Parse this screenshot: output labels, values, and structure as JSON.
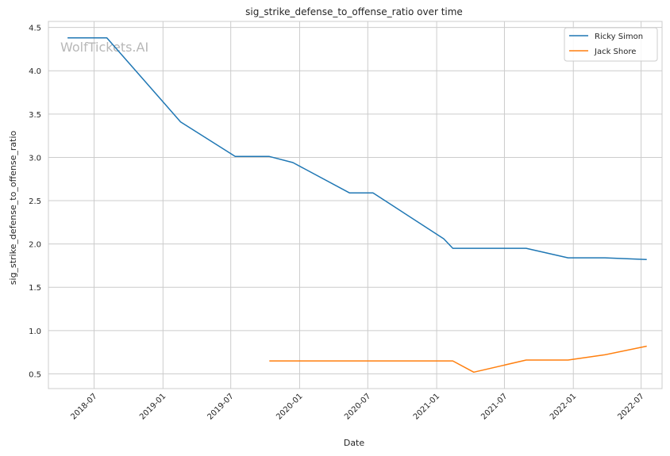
{
  "chart_data": {
    "type": "line",
    "title": "sig_strike_defense_to_offense_ratio over time",
    "xlabel": "Date",
    "ylabel": "sig_strike_defense_to_offense_ratio",
    "watermark": "WolfTickets.AI",
    "xlim": [
      "2018-03-01",
      "2022-08-26"
    ],
    "ylim": [
      0.33,
      4.57
    ],
    "grid": true,
    "legend_position": "top-right",
    "x_ticks": [
      "2018-07",
      "2019-01",
      "2019-07",
      "2020-01",
      "2020-07",
      "2021-01",
      "2021-07",
      "2022-01",
      "2022-07"
    ],
    "y_ticks": [
      "0.5",
      "1.0",
      "1.5",
      "2.0",
      "2.5",
      "3.0",
      "3.5",
      "4.0",
      "4.5"
    ],
    "series": [
      {
        "name": "Ricky Simon",
        "color": "#1f77b4",
        "points": [
          {
            "x": "2018-04-21",
            "y": 4.38
          },
          {
            "x": "2018-08-04",
            "y": 4.38
          },
          {
            "x": "2019-02-17",
            "y": 3.41
          },
          {
            "x": "2019-07-13",
            "y": 3.01
          },
          {
            "x": "2019-10-12",
            "y": 3.01
          },
          {
            "x": "2019-12-14",
            "y": 2.94
          },
          {
            "x": "2020-05-13",
            "y": 2.59
          },
          {
            "x": "2020-07-15",
            "y": 2.59
          },
          {
            "x": "2021-01-20",
            "y": 2.06
          },
          {
            "x": "2021-02-13",
            "y": 1.95
          },
          {
            "x": "2021-08-28",
            "y": 1.95
          },
          {
            "x": "2021-12-18",
            "y": 1.84
          },
          {
            "x": "2022-03-26",
            "y": 1.84
          },
          {
            "x": "2022-07-16",
            "y": 1.82
          }
        ]
      },
      {
        "name": "Jack Shore",
        "color": "#ff7f0e",
        "points": [
          {
            "x": "2019-10-12",
            "y": 0.65
          },
          {
            "x": "2021-02-13",
            "y": 0.65
          },
          {
            "x": "2021-04-10",
            "y": 0.52
          },
          {
            "x": "2021-08-28",
            "y": 0.66
          },
          {
            "x": "2021-12-18",
            "y": 0.66
          },
          {
            "x": "2022-03-26",
            "y": 0.72
          },
          {
            "x": "2022-07-16",
            "y": 0.82
          }
        ]
      }
    ]
  }
}
